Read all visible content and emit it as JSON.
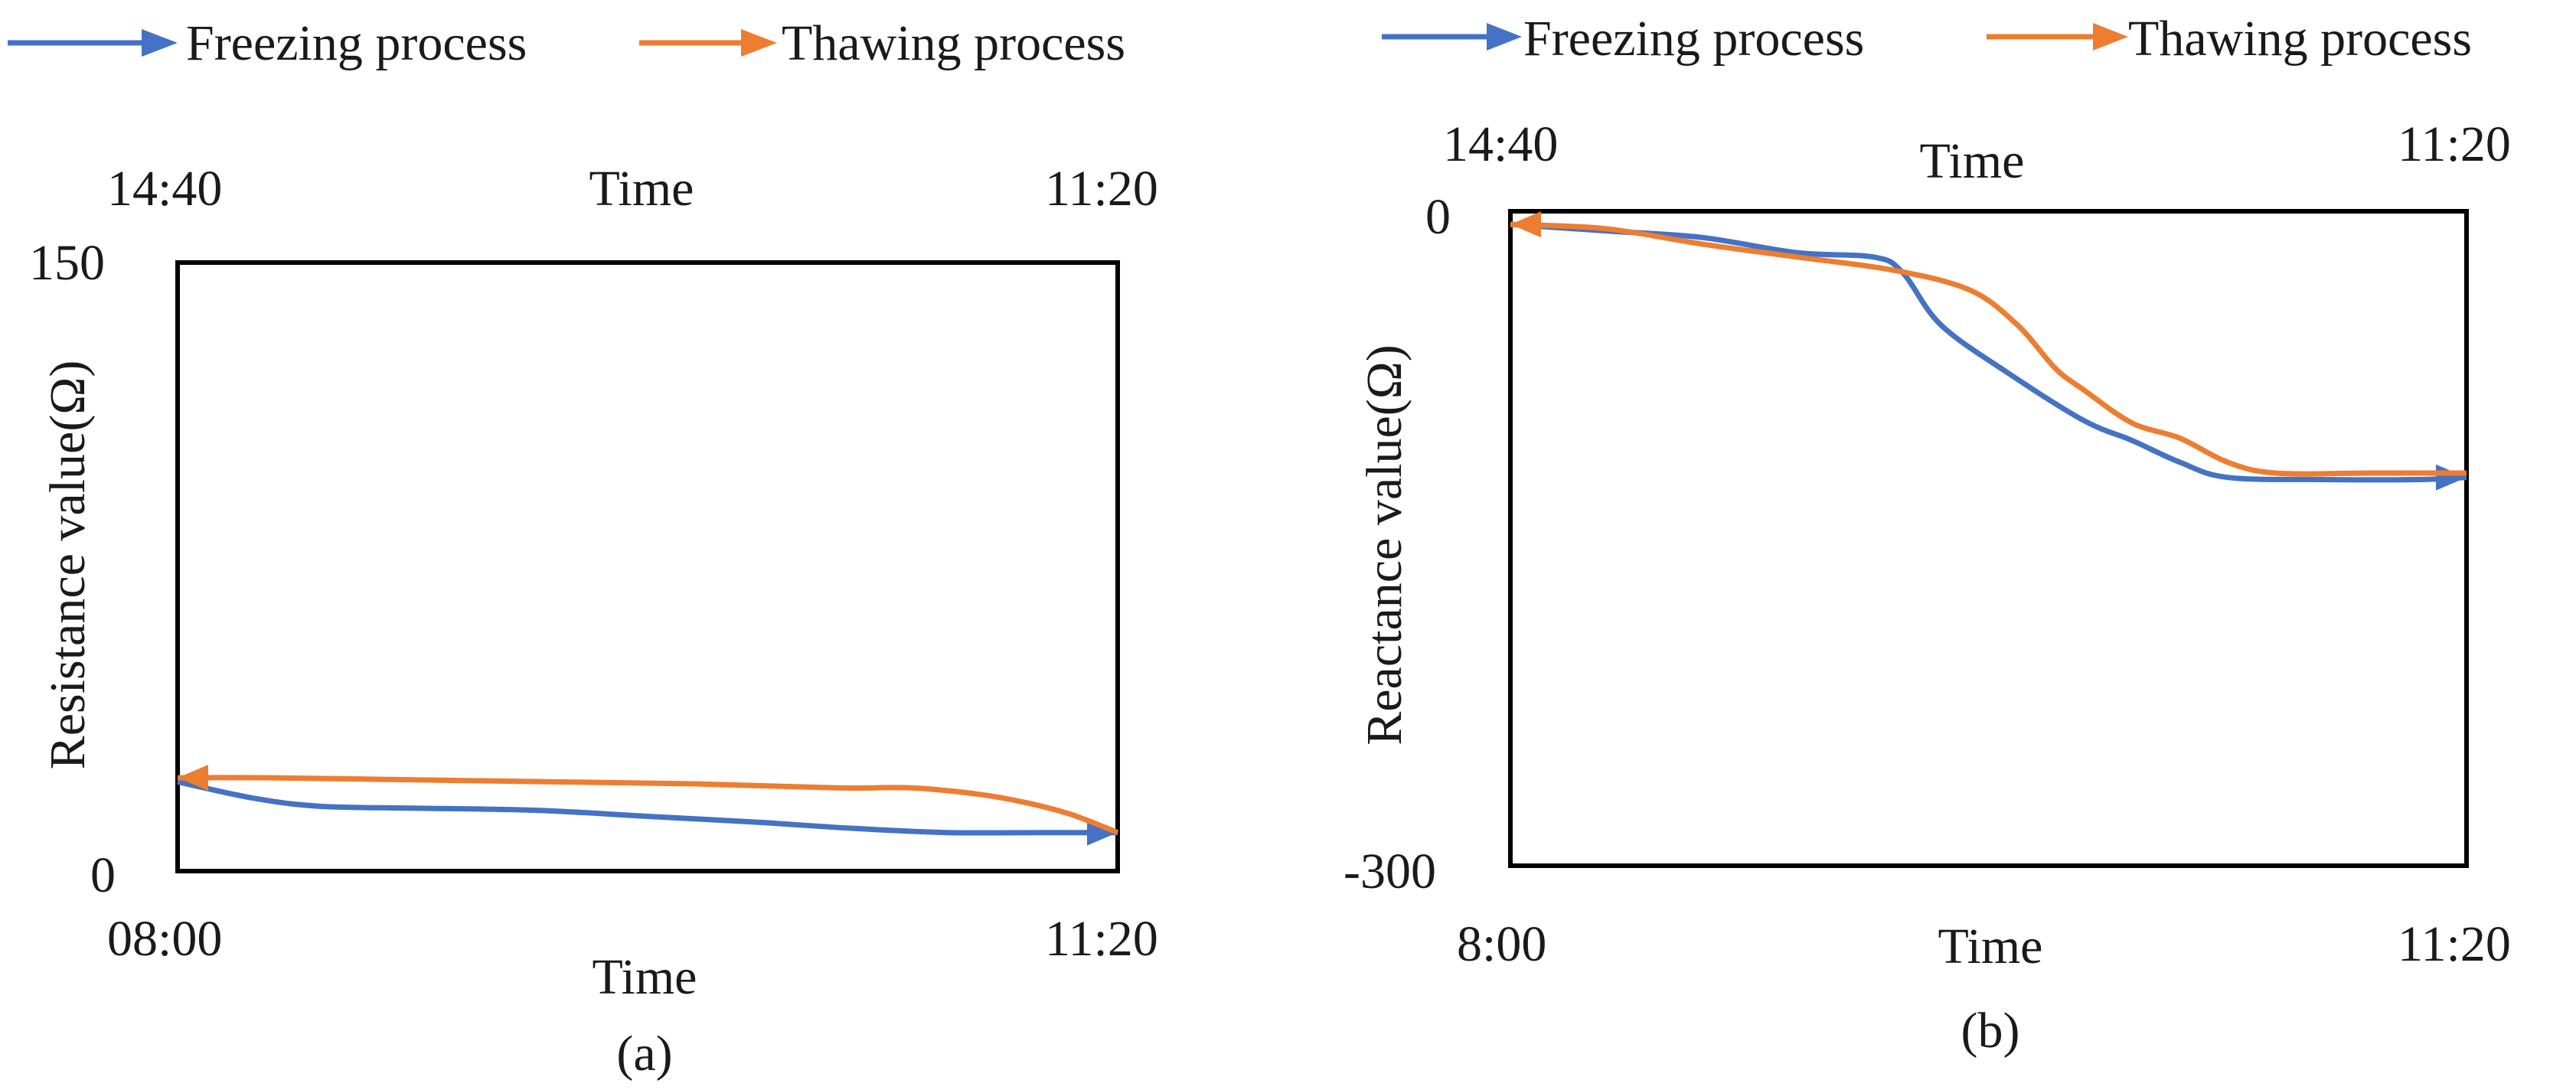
{
  "colors": {
    "freezing": "#4472C4",
    "thawing": "#ED7D31",
    "axis": "#000000"
  },
  "chart_data": [
    {
      "panel": "a",
      "caption": "(a)",
      "type": "line",
      "ylabel": "Resistance value(Ω)",
      "bottom_axis": {
        "label": "Time",
        "start": "08:00",
        "end": "11:20"
      },
      "top_axis": {
        "label": "Time",
        "start": "14:40",
        "end": "11:20"
      },
      "y_ticks": [
        "150",
        "0"
      ],
      "ylim": [
        0,
        150
      ],
      "legend": [
        {
          "key": "freezing",
          "label": "Freezing process"
        },
        {
          "key": "thawing",
          "label": "Thawing process"
        }
      ],
      "series": [
        {
          "name": "Freezing process",
          "key": "freezing",
          "direction": "forward",
          "x": [
            0,
            0.08,
            0.15,
            0.25,
            0.38,
            0.5,
            0.62,
            0.72,
            0.82,
            0.92,
            1.0
          ],
          "values": [
            22,
            18,
            16,
            15.5,
            15,
            13.5,
            12,
            10.5,
            9.5,
            9.5,
            9.5
          ]
        },
        {
          "name": "Thawing process",
          "key": "thawing",
          "direction": "reverse",
          "x": [
            0,
            0.1,
            0.25,
            0.4,
            0.55,
            0.7,
            0.78,
            0.85,
            0.9,
            0.95,
            1.0
          ],
          "values": [
            23,
            23,
            22.5,
            22,
            21.5,
            20.5,
            20.5,
            19,
            17,
            14,
            9.5
          ]
        }
      ]
    },
    {
      "panel": "b",
      "caption": "(b)",
      "type": "line",
      "ylabel": "Reactance value(Ω)",
      "bottom_axis": {
        "label": "Time",
        "start": "8:00",
        "end": "11:20"
      },
      "top_axis": {
        "label": "Time",
        "start": "14:40",
        "end": "11:20"
      },
      "y_ticks": [
        "0",
        "-300"
      ],
      "ylim": [
        -300,
        0
      ],
      "legend": [
        {
          "key": "freezing",
          "label": "Freezing process"
        },
        {
          "key": "thawing",
          "label": "Thawing process"
        }
      ],
      "series": [
        {
          "name": "Freezing process",
          "key": "freezing",
          "direction": "forward",
          "x": [
            0,
            0.1,
            0.2,
            0.3,
            0.38,
            0.41,
            0.45,
            0.52,
            0.6,
            0.65,
            0.7,
            0.75,
            0.85,
            0.95,
            1.0
          ],
          "values": [
            -6,
            -9,
            -12,
            -19,
            -21,
            -28,
            -52,
            -74,
            -96,
            -105,
            -115,
            -122,
            -123,
            -123,
            -122
          ]
        },
        {
          "name": "Thawing process",
          "key": "thawing",
          "direction": "reverse",
          "x": [
            0,
            0.1,
            0.2,
            0.3,
            0.4,
            0.48,
            0.53,
            0.57,
            0.6,
            0.65,
            0.7,
            0.75,
            0.8,
            0.9,
            1.0
          ],
          "values": [
            -6,
            -8,
            -15,
            -21,
            -27,
            -36,
            -52,
            -72,
            -82,
            -97,
            -104,
            -115,
            -120,
            -120,
            -120
          ]
        }
      ]
    }
  ]
}
